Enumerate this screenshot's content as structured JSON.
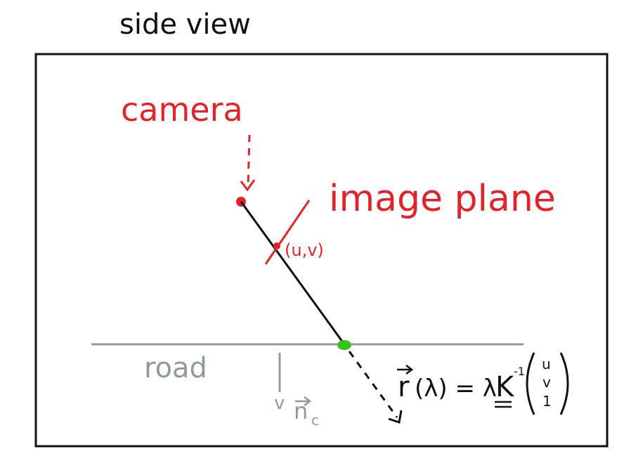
{
  "title": "side view",
  "labels": {
    "camera": "camera",
    "image_plane": "image plane",
    "pixel": "(u,v)",
    "road": "road",
    "normal_v": "v",
    "normal_n": "n",
    "normal_sub": "c",
    "ray_r": "r",
    "ray_paren": "(λ) = λ",
    "ray_K": "K",
    "ray_inv": "-1",
    "vec_u": "u",
    "vec_v": "v",
    "vec_1": "1"
  },
  "colors": {
    "ink": "#111111",
    "red": "#e0242b",
    "road": "#8f9ba0",
    "green": "#39c21a",
    "frame": "#111111"
  }
}
